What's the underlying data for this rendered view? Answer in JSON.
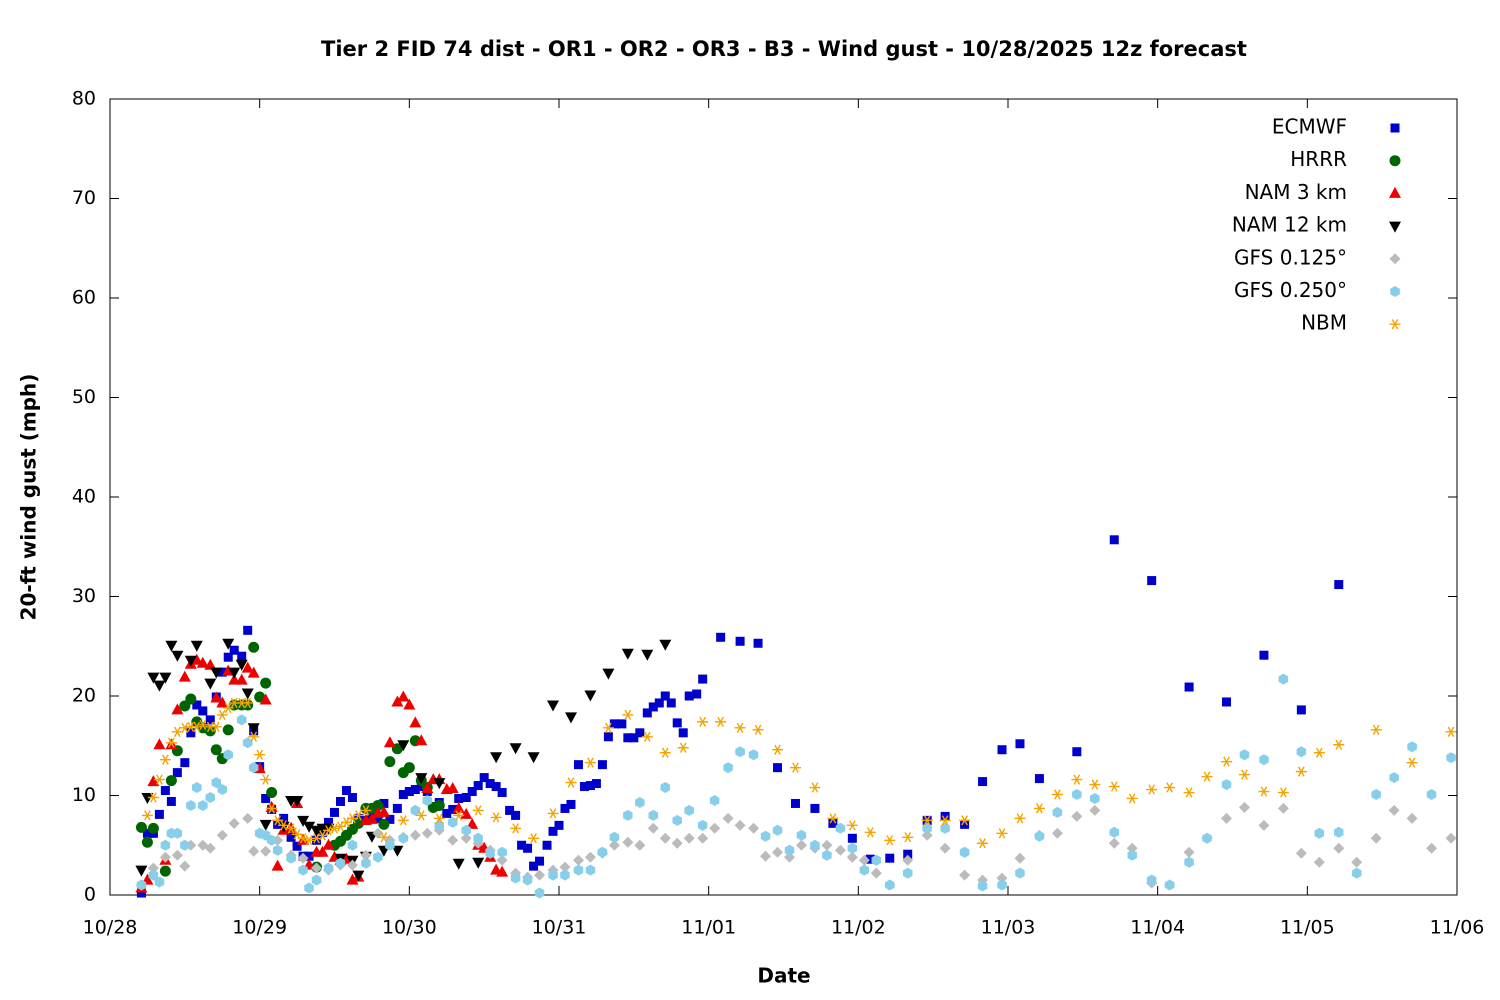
{
  "chart_data": {
    "type": "scatter",
    "title": "Tier 2 FID 74 dist - OR1 - OR2 - OR3 - B3 - Wind gust - 10/28/2025 12z forecast",
    "x_label": "Date",
    "y_label": "20-ft wind gust (mph)",
    "xlim": [
      0,
      9
    ],
    "ylim": [
      0,
      80
    ],
    "xticks": [
      {
        "value": 0,
        "label": "10/28"
      },
      {
        "value": 1,
        "label": "10/29"
      },
      {
        "value": 2,
        "label": "10/30"
      },
      {
        "value": 3,
        "label": "10/31"
      },
      {
        "value": 4,
        "label": "11/01"
      },
      {
        "value": 5,
        "label": "11/02"
      },
      {
        "value": 6,
        "label": "11/03"
      },
      {
        "value": 7,
        "label": "11/04"
      },
      {
        "value": 8,
        "label": "11/05"
      },
      {
        "value": 9,
        "label": "11/06"
      }
    ],
    "yticks": [
      0,
      10,
      20,
      30,
      40,
      50,
      60,
      70,
      80
    ],
    "legend": "top-right",
    "series": [
      {
        "name": "ECMWF",
        "color": "#0000cc",
        "marker": "square",
        "x": [
          0.21,
          0.25,
          0.29,
          0.33,
          0.37,
          0.41,
          0.45,
          0.5,
          0.54,
          0.58,
          0.62,
          0.67,
          0.71,
          0.75,
          0.79,
          0.83,
          0.88,
          0.92,
          0.96,
          1.0,
          1.04,
          1.08,
          1.12,
          1.16,
          1.21,
          1.25,
          1.29,
          1.33,
          1.38,
          1.42,
          1.46,
          1.5,
          1.54,
          1.58,
          1.62,
          1.66,
          1.71,
          1.75,
          1.79,
          1.83,
          1.87,
          1.92,
          1.96,
          2.0,
          2.04,
          2.08,
          2.12,
          2.16,
          2.2,
          2.25,
          2.29,
          2.33,
          2.38,
          2.42,
          2.46,
          2.5,
          2.54,
          2.58,
          2.62,
          2.67,
          2.71,
          2.75,
          2.79,
          2.83,
          2.87,
          2.92,
          2.96,
          3.0,
          3.04,
          3.08,
          3.13,
          3.17,
          3.21,
          3.25,
          3.29,
          3.33,
          3.37,
          3.42,
          3.46,
          3.5,
          3.54,
          3.59,
          3.63,
          3.67,
          3.71,
          3.75,
          3.79,
          3.83,
          3.87,
          3.92,
          3.96,
          4.08,
          4.21,
          4.33,
          4.46,
          4.58,
          4.71,
          4.83,
          4.96,
          5.08,
          5.21,
          5.33,
          5.46,
          5.58,
          5.71,
          5.83,
          5.96,
          6.08,
          6.21,
          6.46,
          6.71,
          6.96,
          7.21,
          7.46,
          7.71,
          7.96,
          8.21
        ],
        "values": [
          0.2,
          6.2,
          6.2,
          8.1,
          10.5,
          9.4,
          12.3,
          13.3,
          16.3,
          19.1,
          18.5,
          17.6,
          19.9,
          22.4,
          23.9,
          24.6,
          24.0,
          26.6,
          16.5,
          12.9,
          9.7,
          8.6,
          7.1,
          7.7,
          5.8,
          4.9,
          3.9,
          3.9,
          5.5,
          6.3,
          7.3,
          8.3,
          9.4,
          10.5,
          9.8,
          7.7,
          7.5,
          8.3,
          7.7,
          9.2,
          7.6,
          8.7,
          10.1,
          10.4,
          10.6,
          10.9,
          10.4,
          8.9,
          9.3,
          8.2,
          8.6,
          9.7,
          9.8,
          10.4,
          11.0,
          11.8,
          11.2,
          10.9,
          10.3,
          8.5,
          8.0,
          5.0,
          4.7,
          2.9,
          3.4,
          5.0,
          6.4,
          7.0,
          8.7,
          9.1,
          13.1,
          10.9,
          11.0,
          11.2,
          13.1,
          15.9,
          17.2,
          17.2,
          15.8,
          15.8,
          16.3,
          18.3,
          18.9,
          19.3,
          20.0,
          19.3,
          17.3,
          16.3,
          20.0,
          20.2,
          21.7,
          25.9,
          25.5,
          25.3,
          12.8,
          9.2,
          8.7,
          7.2,
          5.7,
          3.6,
          3.7,
          4.1,
          7.5,
          7.9,
          7.1,
          11.4,
          14.6,
          15.2,
          11.7,
          14.4,
          35.7,
          31.6,
          20.9,
          19.4,
          24.1,
          18.6,
          31.2
        ]
      },
      {
        "name": "HRRR",
        "color": "#006400",
        "marker": "circle",
        "x": [
          0.21,
          0.25,
          0.29,
          0.37,
          0.41,
          0.45,
          0.5,
          0.54,
          0.58,
          0.62,
          0.67,
          0.71,
          0.75,
          0.79,
          0.83,
          0.88,
          0.92,
          0.96,
          1.0,
          1.04,
          1.08,
          1.38,
          1.5,
          1.54,
          1.58,
          1.62,
          1.66,
          1.71,
          1.75,
          1.79,
          1.83,
          1.87,
          1.92,
          1.96,
          2.0,
          2.04,
          2.08,
          2.12,
          2.16,
          2.2
        ],
        "values": [
          6.8,
          5.3,
          6.7,
          2.4,
          11.5,
          14.5,
          19.0,
          19.7,
          17.4,
          16.8,
          16.5,
          14.6,
          13.7,
          16.6,
          19.1,
          19.1,
          19.1,
          24.9,
          19.9,
          21.3,
          10.3,
          2.8,
          5.0,
          5.4,
          6.0,
          6.6,
          7.2,
          8.7,
          8.7,
          9.0,
          7.1,
          13.4,
          14.7,
          12.3,
          12.8,
          15.5,
          11.5,
          10.8,
          8.8,
          9.0
        ]
      },
      {
        "name": "NAM 3 km",
        "color": "#ee0000",
        "marker": "triangle-up",
        "x": [
          0.21,
          0.25,
          0.29,
          0.33,
          0.37,
          0.41,
          0.45,
          0.5,
          0.54,
          0.58,
          0.62,
          0.67,
          0.71,
          0.75,
          0.79,
          0.83,
          0.88,
          0.92,
          0.96,
          1.0,
          1.04,
          1.08,
          1.12,
          1.16,
          1.21,
          1.25,
          1.29,
          1.33,
          1.38,
          1.42,
          1.46,
          1.5,
          1.54,
          1.58,
          1.62,
          1.66,
          1.71,
          1.75,
          1.79,
          1.83,
          1.87,
          1.92,
          1.96,
          2.0,
          2.04,
          2.08,
          2.12,
          2.16,
          2.2,
          2.25,
          2.29,
          2.33,
          2.38,
          2.42,
          2.46,
          2.5,
          2.54,
          2.58,
          2.62
        ],
        "values": [
          0.7,
          1.5,
          11.4,
          15.1,
          3.5,
          15.1,
          18.6,
          21.9,
          23.2,
          23.6,
          23.3,
          23.1,
          19.8,
          19.3,
          22.5,
          21.6,
          21.6,
          22.8,
          22.3,
          12.7,
          19.6,
          8.8,
          2.9,
          6.5,
          6.7,
          9.2,
          5.5,
          3.0,
          4.3,
          4.3,
          5.0,
          3.8,
          3.5,
          3.6,
          1.5,
          1.8,
          7.5,
          7.6,
          8.2,
          8.3,
          15.3,
          19.4,
          19.9,
          19.1,
          17.3,
          15.5,
          10.7,
          11.6,
          11.6,
          10.6,
          10.7,
          8.7,
          8.1,
          7.1,
          5.0,
          4.7,
          3.8,
          2.5,
          2.3
        ]
      },
      {
        "name": "NAM 12 km",
        "color": "#000000",
        "marker": "triangle-down",
        "x": [
          0.21,
          0.25,
          0.29,
          0.33,
          0.37,
          0.41,
          0.45,
          0.54,
          0.58,
          0.67,
          0.71,
          0.79,
          0.83,
          0.88,
          0.92,
          0.96,
          1.04,
          1.16,
          1.21,
          1.25,
          1.29,
          1.33,
          1.38,
          1.42,
          1.46,
          1.54,
          1.62,
          1.66,
          1.71,
          1.75,
          1.83,
          1.92,
          1.96,
          2.08,
          2.2,
          2.33,
          2.46,
          2.58,
          2.71,
          2.83,
          2.96,
          3.08,
          3.21,
          3.33,
          3.46,
          3.59,
          3.71
        ],
        "values": [
          2.5,
          9.8,
          21.9,
          21.1,
          21.9,
          25.1,
          24.1,
          23.6,
          25.1,
          21.3,
          22.4,
          25.3,
          22.4,
          23.2,
          20.3,
          16.8,
          7.1,
          6.9,
          9.5,
          9.5,
          7.5,
          6.9,
          6.5,
          6.7,
          6.7,
          3.7,
          3.5,
          2.0,
          3.9,
          5.9,
          4.5,
          4.5,
          15.1,
          11.8,
          11.3,
          3.2,
          3.3,
          13.9,
          14.8,
          13.9,
          19.1,
          17.9,
          20.1,
          22.3,
          24.3,
          24.2,
          25.2
        ]
      },
      {
        "name": "GFS 0.125°",
        "color": "#bbbbbb",
        "marker": "diamond",
        "x": [
          0.21,
          0.29,
          0.37,
          0.45,
          0.5,
          0.54,
          0.62,
          0.67,
          0.75,
          0.83,
          0.92,
          0.96,
          1.04,
          1.12,
          1.21,
          1.29,
          1.38,
          1.46,
          1.54,
          1.62,
          1.71,
          1.79,
          1.87,
          1.96,
          2.04,
          2.12,
          2.2,
          2.29,
          2.38,
          2.46,
          2.54,
          2.62,
          2.71,
          2.79,
          2.87,
          2.96,
          3.04,
          3.13,
          3.21,
          3.29,
          3.37,
          3.46,
          3.54,
          3.63,
          3.71,
          3.79,
          3.87,
          3.96,
          4.04,
          4.13,
          4.21,
          4.3,
          4.38,
          4.46,
          4.54,
          4.62,
          4.71,
          4.79,
          4.88,
          4.96,
          5.04,
          5.12,
          5.21,
          5.33,
          5.46,
          5.58,
          5.71,
          5.83,
          5.96,
          6.08,
          6.21,
          6.33,
          6.46,
          6.58,
          6.71,
          6.83,
          6.96,
          7.08,
          7.21,
          7.33,
          7.46,
          7.58,
          7.71,
          7.84,
          7.96,
          8.08,
          8.21,
          8.33,
          8.46,
          8.58,
          8.7,
          8.83,
          8.96
        ],
        "values": [
          1.0,
          2.7,
          3.8,
          4.0,
          2.9,
          5.0,
          5.0,
          4.7,
          6.0,
          7.2,
          7.7,
          4.4,
          4.4,
          5.5,
          4.0,
          3.7,
          2.7,
          2.5,
          3.0,
          3.0,
          4.0,
          6.2,
          5.5,
          5.8,
          6.0,
          6.2,
          6.5,
          5.5,
          5.7,
          5.2,
          4.5,
          3.5,
          2.2,
          1.8,
          2.0,
          2.5,
          2.8,
          3.5,
          3.8,
          4.2,
          5.0,
          5.3,
          5.0,
          6.7,
          5.7,
          5.2,
          5.7,
          5.7,
          6.7,
          7.7,
          7.0,
          6.7,
          3.9,
          4.3,
          3.8,
          5.0,
          4.7,
          5.0,
          4.5,
          3.8,
          3.5,
          2.2,
          1.0,
          3.5,
          6.0,
          4.7,
          2.0,
          1.5,
          1.7,
          3.7,
          6.0,
          6.2,
          7.9,
          8.5,
          5.2,
          4.7,
          1.2,
          1.0,
          4.3,
          5.7,
          7.7,
          8.8,
          7.0,
          8.7,
          4.2,
          3.3,
          4.7,
          3.3,
          5.7,
          8.5,
          7.7,
          4.7,
          5.7
        ]
      },
      {
        "name": "GFS 0.250°",
        "color": "#87ceeb",
        "marker": "hexagon",
        "x": [
          0.21,
          0.29,
          0.33,
          0.37,
          0.41,
          0.45,
          0.5,
          0.54,
          0.58,
          0.62,
          0.67,
          0.71,
          0.75,
          0.79,
          0.88,
          0.92,
          0.96,
          1.0,
          1.04,
          1.08,
          1.12,
          1.21,
          1.29,
          1.33,
          1.38,
          1.46,
          1.54,
          1.62,
          1.71,
          1.79,
          1.87,
          1.96,
          2.04,
          2.12,
          2.2,
          2.29,
          2.38,
          2.46,
          2.54,
          2.62,
          2.71,
          2.79,
          2.87,
          2.96,
          3.04,
          3.13,
          3.21,
          3.29,
          3.37,
          3.46,
          3.54,
          3.63,
          3.71,
          3.79,
          3.87,
          3.96,
          4.04,
          4.13,
          4.21,
          4.3,
          4.38,
          4.46,
          4.54,
          4.62,
          4.71,
          4.79,
          4.88,
          4.96,
          5.04,
          5.12,
          5.21,
          5.33,
          5.46,
          5.58,
          5.71,
          5.83,
          5.96,
          6.08,
          6.21,
          6.33,
          6.46,
          6.58,
          6.71,
          6.83,
          6.96,
          7.08,
          7.21,
          7.33,
          7.46,
          7.58,
          7.71,
          7.84,
          7.96,
          8.08,
          8.21,
          8.33,
          8.46,
          8.58,
          8.7,
          8.83,
          8.96
        ],
        "values": [
          1.0,
          2.0,
          1.3,
          5.0,
          6.2,
          6.2,
          5.0,
          9.0,
          10.8,
          9.0,
          9.8,
          11.3,
          10.6,
          14.1,
          17.6,
          15.3,
          12.8,
          6.2,
          6.0,
          5.5,
          4.5,
          3.7,
          2.5,
          0.7,
          1.5,
          2.7,
          3.2,
          5.0,
          3.2,
          3.8,
          5.0,
          5.7,
          8.5,
          9.5,
          7.0,
          7.3,
          6.5,
          5.7,
          4.2,
          4.3,
          1.7,
          1.5,
          0.2,
          2.0,
          2.0,
          2.5,
          2.5,
          4.3,
          5.8,
          8.0,
          9.3,
          8.0,
          10.8,
          7.5,
          8.5,
          7.0,
          9.5,
          12.8,
          14.4,
          14.1,
          5.9,
          6.5,
          4.5,
          6.0,
          5.0,
          4.0,
          6.7,
          4.7,
          2.5,
          3.5,
          1.0,
          2.2,
          6.7,
          6.7,
          4.3,
          0.9,
          1.0,
          2.2,
          5.9,
          8.3,
          10.1,
          9.7,
          6.3,
          4.0,
          1.5,
          1.0,
          3.3,
          5.7,
          11.1,
          14.1,
          13.6,
          21.7,
          14.4,
          6.2,
          6.3,
          2.2,
          10.1,
          11.8,
          14.9,
          10.1,
          13.8
        ]
      },
      {
        "name": "NBM",
        "color": "#f5a300",
        "marker": "asterisk",
        "x": [
          0.25,
          0.29,
          0.33,
          0.37,
          0.41,
          0.45,
          0.5,
          0.54,
          0.58,
          0.62,
          0.67,
          0.71,
          0.75,
          0.79,
          0.83,
          0.88,
          0.92,
          0.96,
          1.0,
          1.04,
          1.08,
          1.12,
          1.16,
          1.21,
          1.25,
          1.29,
          1.33,
          1.38,
          1.42,
          1.46,
          1.5,
          1.54,
          1.58,
          1.62,
          1.66,
          1.71,
          1.83,
          1.96,
          2.08,
          2.2,
          2.33,
          2.46,
          2.58,
          2.71,
          2.83,
          2.96,
          3.08,
          3.21,
          3.33,
          3.46,
          3.59,
          3.71,
          3.83,
          3.96,
          4.08,
          4.21,
          4.33,
          4.46,
          4.58,
          4.71,
          4.83,
          4.96,
          5.08,
          5.21,
          5.33,
          5.46,
          5.58,
          5.71,
          5.83,
          5.96,
          6.08,
          6.21,
          6.33,
          6.46,
          6.58,
          6.71,
          6.83,
          6.96,
          7.08,
          7.21,
          7.33,
          7.46,
          7.58,
          7.71,
          7.84,
          7.96,
          8.08,
          8.21,
          8.46,
          8.7,
          8.96
        ],
        "values": [
          8.0,
          9.8,
          11.6,
          13.6,
          15.3,
          16.4,
          16.8,
          16.9,
          16.9,
          17.1,
          16.9,
          16.9,
          18.1,
          18.8,
          19.3,
          19.3,
          19.3,
          15.9,
          14.1,
          11.6,
          8.7,
          7.5,
          7.0,
          6.7,
          6.1,
          5.7,
          5.5,
          5.7,
          6.0,
          6.5,
          6.7,
          6.9,
          7.3,
          7.7,
          8.0,
          8.5,
          5.8,
          7.5,
          8.0,
          7.7,
          8.0,
          8.5,
          7.8,
          6.7,
          5.7,
          8.2,
          11.3,
          13.3,
          16.8,
          18.1,
          15.9,
          14.3,
          14.8,
          17.4,
          17.4,
          16.8,
          16.6,
          14.6,
          12.8,
          10.8,
          7.7,
          7.0,
          6.3,
          5.5,
          5.8,
          7.5,
          7.5,
          7.5,
          5.2,
          6.2,
          7.7,
          8.7,
          10.1,
          11.6,
          11.1,
          10.9,
          9.7,
          10.6,
          10.8,
          10.3,
          11.9,
          13.4,
          12.1,
          10.4,
          10.3,
          12.4,
          14.3,
          15.1,
          16.6,
          13.3,
          16.4
        ]
      }
    ]
  }
}
